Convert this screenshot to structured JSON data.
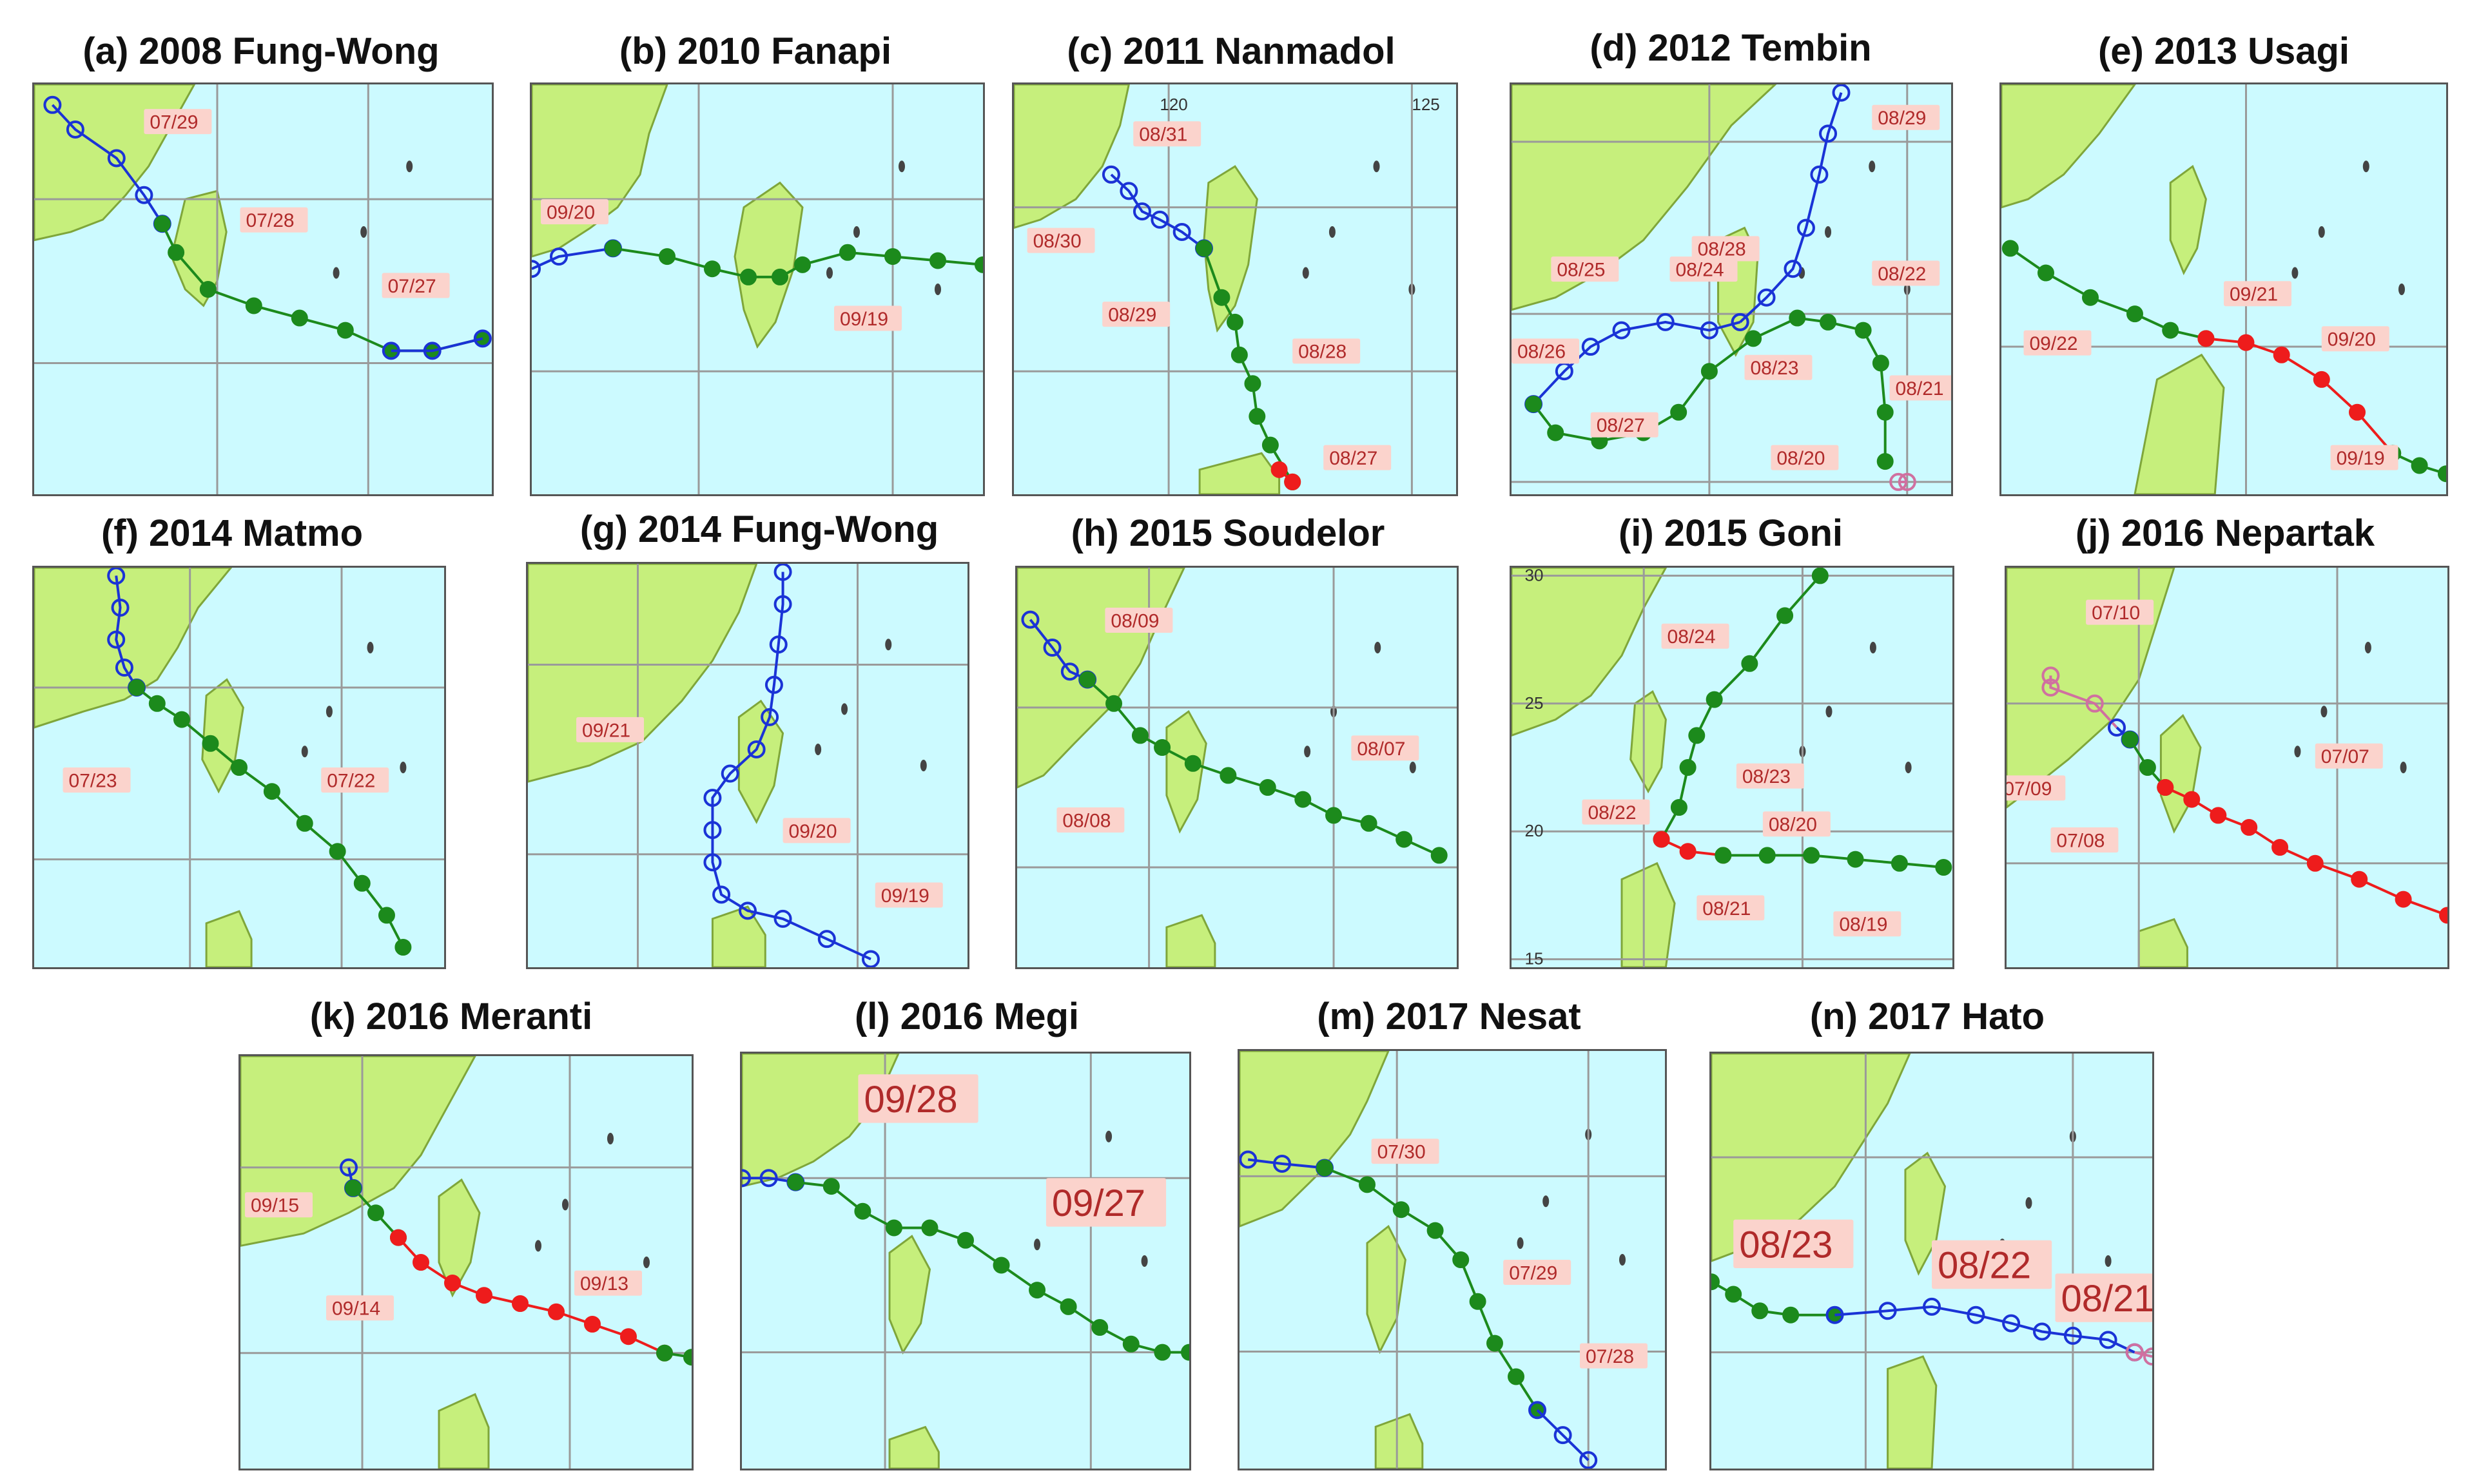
{
  "figure": {
    "colors": {
      "ocean": "#ccfaff",
      "land": "#c6ef7c",
      "coast": "#7fa63a",
      "grid": "#9a9a9a",
      "label_bg": "#fbd3cc",
      "label_text": "#b02a2a",
      "track_blue": "#1a33d6",
      "track_green": "#1c8a1c",
      "track_red": "#ee1c1c",
      "track_pink": "#d070a0"
    },
    "panels": [
      {
        "id": "a",
        "title": "(a) 2008 Fung-Wong",
        "dates": [
          "07/29",
          "07/28",
          "07/27"
        ],
        "track_colors": [
          "blue",
          "green"
        ]
      },
      {
        "id": "b",
        "title": "(b) 2010 Fanapi",
        "dates": [
          "09/20",
          "09/19"
        ],
        "track_colors": [
          "blue",
          "green"
        ]
      },
      {
        "id": "c",
        "title": "(c) 2011 Nanmadol",
        "dates": [
          "08/31",
          "08/30",
          "08/29",
          "08/28",
          "08/27"
        ],
        "lon_ticks": [
          "120",
          "125"
        ],
        "track_colors": [
          "pink",
          "blue",
          "green",
          "red"
        ]
      },
      {
        "id": "d",
        "title": "(d) 2012 Tembin",
        "dates": [
          "08/29",
          "08/25",
          "08/24",
          "08/28",
          "08/22",
          "08/26",
          "08/23",
          "08/21",
          "08/27",
          "08/20"
        ],
        "track_colors": [
          "blue",
          "green",
          "pink"
        ]
      },
      {
        "id": "e",
        "title": "(e) 2013 Usagi",
        "dates": [
          "09/21",
          "09/22",
          "09/20",
          "09/19"
        ],
        "track_colors": [
          "green",
          "red"
        ]
      },
      {
        "id": "f",
        "title": "(f) 2014 Matmo",
        "dates": [
          "07/23",
          "07/22"
        ],
        "track_colors": [
          "blue",
          "green"
        ]
      },
      {
        "id": "g",
        "title": "(g) 2014 Fung-Wong",
        "dates": [
          "09/21",
          "09/20",
          "09/19"
        ],
        "track_colors": [
          "blue"
        ]
      },
      {
        "id": "h",
        "title": "(h) 2015 Soudelor",
        "dates": [
          "08/09",
          "08/07",
          "08/08"
        ],
        "track_colors": [
          "pink",
          "blue",
          "green"
        ]
      },
      {
        "id": "i",
        "title": "(i) 2015 Goni",
        "dates": [
          "08/24",
          "08/23",
          "08/22",
          "08/20",
          "08/21",
          "08/19"
        ],
        "lat_ticks": [
          "30",
          "25",
          "20",
          "15"
        ],
        "track_colors": [
          "green",
          "red"
        ]
      },
      {
        "id": "j",
        "title": "(j) 2016 Nepartak",
        "dates": [
          "07/10",
          "07/07",
          "07/09",
          "07/08"
        ],
        "track_colors": [
          "pink",
          "blue",
          "green",
          "red"
        ]
      },
      {
        "id": "k",
        "title": "(k) 2016 Meranti",
        "dates": [
          "09/15",
          "09/13",
          "09/14"
        ],
        "track_colors": [
          "blue",
          "green",
          "red"
        ]
      },
      {
        "id": "l",
        "title": "(l) 2016 Megi",
        "dates": [
          "09/28",
          "09/27"
        ],
        "track_colors": [
          "blue",
          "green"
        ]
      },
      {
        "id": "m",
        "title": "(m) 2017 Nesat",
        "dates": [
          "07/30",
          "07/29",
          "07/28"
        ],
        "track_colors": [
          "pink",
          "blue",
          "green"
        ]
      },
      {
        "id": "n",
        "title": "(n) 2017 Hato",
        "dates": [
          "08/23",
          "08/22",
          "08/21"
        ],
        "track_colors": [
          "green",
          "blue",
          "pink"
        ]
      }
    ]
  }
}
